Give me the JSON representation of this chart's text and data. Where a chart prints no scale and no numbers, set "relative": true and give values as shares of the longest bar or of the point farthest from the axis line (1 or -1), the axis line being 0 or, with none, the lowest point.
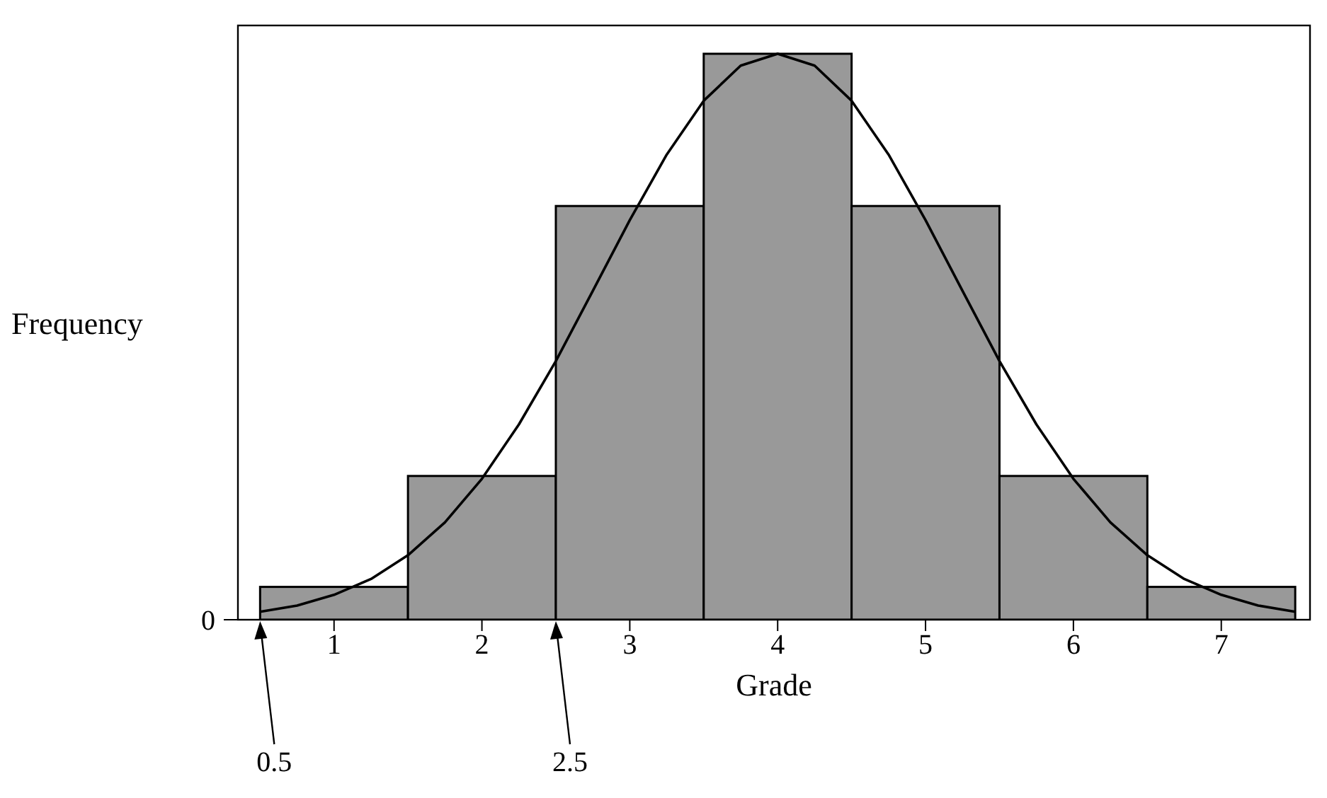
{
  "chart_data": {
    "type": "histogram",
    "relative": true,
    "xlabel": "Grade",
    "ylabel": "Frequency",
    "bins": [
      0.5,
      1.5,
      2.5,
      3.5,
      4.5,
      5.5,
      6.5,
      7.5
    ],
    "values": [
      0.058,
      0.254,
      0.731,
      1,
      0.731,
      0.254,
      0.058
    ],
    "color": "#999999",
    "series": [
      {
        "type": "line",
        "color": "#000000",
        "x": [
          0.5,
          0.75,
          1,
          1.25,
          1.5,
          1.75,
          2,
          2.25,
          2.5,
          2.75,
          3,
          3.25,
          3.5,
          3.75,
          4,
          4.25,
          4.5,
          4.75,
          5,
          5.25,
          5.5,
          5.75,
          6,
          6.25,
          6.5,
          6.75,
          7,
          7.25,
          7.5
        ],
        "values": [
          0.014,
          0.025,
          0.044,
          0.072,
          0.114,
          0.172,
          0.249,
          0.345,
          0.457,
          0.581,
          0.706,
          0.822,
          0.917,
          0.979,
          1,
          0.979,
          0.917,
          0.822,
          0.706,
          0.581,
          0.457,
          0.345,
          0.249,
          0.172,
          0.114,
          0.072,
          0.044,
          0.025,
          0.014
        ]
      }
    ],
    "xlim": [
      0.35,
      7.6
    ],
    "xticks": [
      1,
      2,
      3,
      4,
      5,
      6,
      7
    ],
    "annotations": [
      "0",
      "0.5",
      "2.5"
    ],
    "grid": false,
    "marker": "none"
  }
}
